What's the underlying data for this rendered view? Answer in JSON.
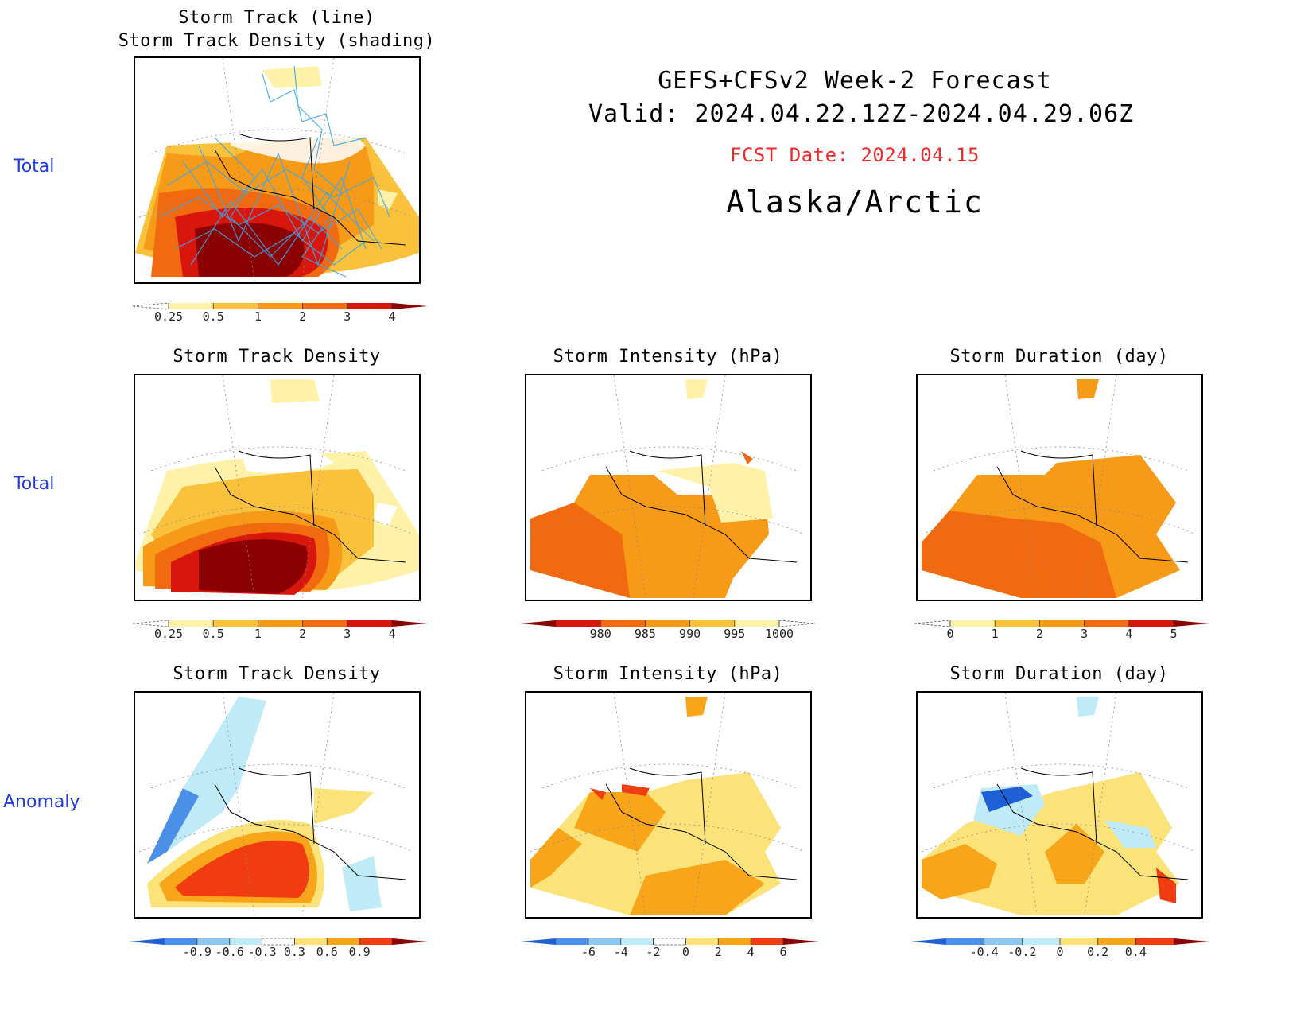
{
  "header": {
    "line1": "GEFS+CFSv2 Week-2 Forecast",
    "line2": "Valid: 2024.04.22.12Z-2024.04.29.06Z",
    "fcst": "FCST Date: 2024.04.15",
    "region": "Alaska/Arctic"
  },
  "row_labels": {
    "row1": "Total",
    "row2": "Total",
    "row3": "Anomaly"
  },
  "panels": {
    "p1": {
      "title1": "Storm Track (line)",
      "title2": "Storm Track Density (shading)"
    },
    "p2": {
      "title": "Storm Track Density"
    },
    "p3": {
      "title": "Storm Intensity (hPa)"
    },
    "p4": {
      "title": "Storm Duration (day)"
    },
    "p5": {
      "title": "Storm Track Density"
    },
    "p6": {
      "title": "Storm Intensity (hPa)"
    },
    "p7": {
      "title": "Storm Duration (day)"
    }
  },
  "colorbars": {
    "density_total": {
      "colors": [
        "#ffffff",
        "#fff2a8",
        "#fac23c",
        "#f79a18",
        "#f26a10",
        "#d8160c",
        "#8b0000"
      ],
      "labels": [
        "0.25",
        "0.5",
        "1",
        "2",
        "3",
        "4"
      ]
    },
    "intensity_total": {
      "colors": [
        "#8b0000",
        "#d8160c",
        "#f26a10",
        "#f79a18",
        "#fac23c",
        "#fff2a8",
        "#ffffff"
      ],
      "labels": [
        "980",
        "985",
        "990",
        "995",
        "1000"
      ]
    },
    "duration_total": {
      "colors": [
        "#ffffff",
        "#fff2a8",
        "#fac23c",
        "#f79a18",
        "#f26a10",
        "#d8160c",
        "#8b0000"
      ],
      "labels": [
        "0",
        "1",
        "2",
        "3",
        "4",
        "5"
      ]
    },
    "density_anom": {
      "colors": [
        "#1f5fd6",
        "#4a8fe8",
        "#8ec8f2",
        "#bfeaf7",
        "#ffffff",
        "#fbe37a",
        "#f8a51a",
        "#f03c10",
        "#8b0000"
      ],
      "labels": [
        "-0.9",
        "-0.6",
        "-0.3",
        "0.3",
        "0.6",
        "0.9"
      ]
    },
    "intensity_anom": {
      "colors": [
        "#1f5fd6",
        "#4a8fe8",
        "#8ec8f2",
        "#bfeaf7",
        "#ffffff",
        "#fbe37a",
        "#f8a51a",
        "#f03c10",
        "#8b0000"
      ],
      "labels": [
        "-6",
        "-4",
        "-2",
        "0",
        "2",
        "4",
        "6"
      ]
    },
    "duration_anom": {
      "colors": [
        "#1f5fd6",
        "#4a8fe8",
        "#8ec8f2",
        "#bfeaf7",
        "#fbe37a",
        "#f8a51a",
        "#f03c10",
        "#8b0000"
      ],
      "labels": [
        "-0.4",
        "-0.2",
        "0",
        "0.2",
        "0.4"
      ]
    }
  }
}
